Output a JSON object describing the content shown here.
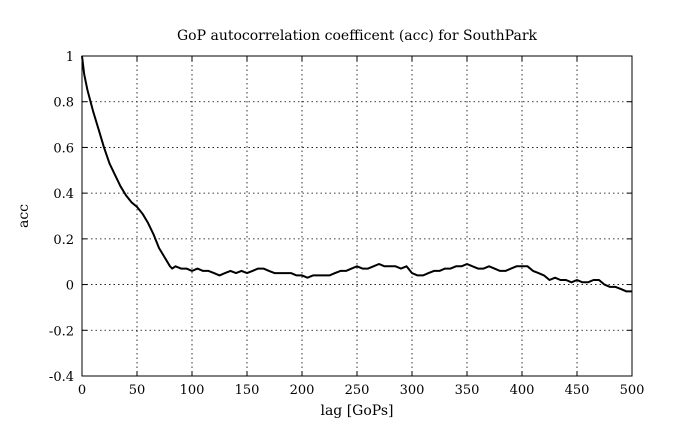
{
  "chart_data": {
    "type": "line",
    "title": "GoP autocorrelation coefficent (acc) for SouthPark",
    "xlabel": "lag [GoPs]",
    "ylabel": "acc",
    "xlim": [
      0,
      500
    ],
    "ylim": [
      -0.4,
      1
    ],
    "xticks": [
      0,
      50,
      100,
      150,
      200,
      250,
      300,
      350,
      400,
      450,
      500
    ],
    "xtick_labels": [
      "0",
      "50",
      "100",
      "150",
      "200",
      "250",
      "300",
      "350",
      "400",
      "450",
      "500"
    ],
    "yticks": [
      -0.4,
      -0.2,
      0,
      0.2,
      0.4,
      0.6,
      0.8,
      1
    ],
    "ytick_labels": [
      "-0.4",
      "-0.2",
      "0",
      "0.2",
      "0.4",
      "0.6",
      "0.8",
      "1"
    ],
    "grid": true,
    "series": [
      {
        "x": [
          0,
          2,
          5,
          10,
          15,
          20,
          25,
          30,
          35,
          40,
          45,
          50,
          55,
          60,
          65,
          70,
          75,
          80,
          82,
          85,
          90,
          95,
          100,
          105,
          110,
          115,
          120,
          125,
          130,
          135,
          140,
          145,
          150,
          155,
          160,
          165,
          170,
          175,
          180,
          185,
          190,
          195,
          200,
          205,
          210,
          215,
          220,
          225,
          230,
          235,
          240,
          245,
          250,
          255,
          260,
          265,
          270,
          275,
          280,
          285,
          290,
          295,
          300,
          305,
          310,
          315,
          320,
          325,
          330,
          335,
          340,
          345,
          350,
          355,
          360,
          365,
          370,
          375,
          380,
          385,
          390,
          395,
          400,
          405,
          410,
          415,
          420,
          425,
          430,
          435,
          440,
          445,
          450,
          455,
          460,
          465,
          470,
          475,
          480,
          485,
          490,
          495,
          500
        ],
        "y": [
          1.0,
          0.92,
          0.85,
          0.76,
          0.68,
          0.6,
          0.53,
          0.48,
          0.43,
          0.39,
          0.36,
          0.34,
          0.31,
          0.27,
          0.22,
          0.16,
          0.12,
          0.08,
          0.07,
          0.08,
          0.07,
          0.07,
          0.06,
          0.07,
          0.06,
          0.06,
          0.05,
          0.04,
          0.05,
          0.06,
          0.05,
          0.06,
          0.05,
          0.06,
          0.07,
          0.07,
          0.06,
          0.05,
          0.05,
          0.05,
          0.05,
          0.04,
          0.04,
          0.03,
          0.04,
          0.04,
          0.04,
          0.04,
          0.05,
          0.06,
          0.06,
          0.07,
          0.08,
          0.07,
          0.07,
          0.08,
          0.09,
          0.08,
          0.08,
          0.08,
          0.07,
          0.08,
          0.05,
          0.04,
          0.04,
          0.05,
          0.06,
          0.06,
          0.07,
          0.07,
          0.08,
          0.08,
          0.09,
          0.08,
          0.07,
          0.07,
          0.08,
          0.07,
          0.06,
          0.06,
          0.07,
          0.08,
          0.08,
          0.08,
          0.06,
          0.05,
          0.04,
          0.02,
          0.03,
          0.02,
          0.02,
          0.01,
          0.02,
          0.01,
          0.01,
          0.02,
          0.02,
          0.0,
          -0.01,
          -0.01,
          -0.02,
          -0.03,
          -0.03
        ]
      }
    ]
  }
}
